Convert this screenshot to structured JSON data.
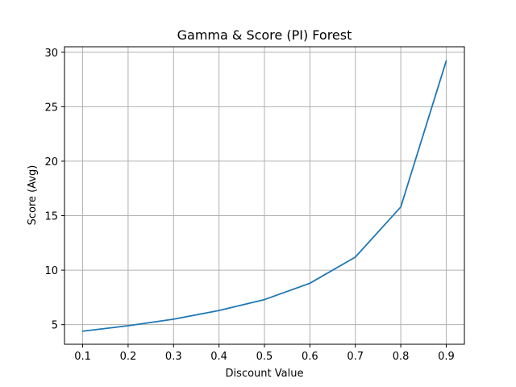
{
  "chart_data": {
    "type": "line",
    "title": "Gamma & Score (PI) Forest",
    "xlabel": "Discount Value",
    "ylabel": "Score (Avg)",
    "x": [
      0.1,
      0.2,
      0.3,
      0.4,
      0.5,
      0.6,
      0.7,
      0.8,
      0.9
    ],
    "series": [
      {
        "values": [
          4.4,
          4.9,
          5.5,
          6.3,
          7.3,
          8.8,
          11.2,
          15.8,
          29.2
        ]
      }
    ],
    "xlim": [
      0.06,
      0.94
    ],
    "ylim": [
      3.2,
      30.5
    ],
    "xticks": [
      0.1,
      0.2,
      0.3,
      0.4,
      0.5,
      0.6,
      0.7,
      0.8,
      0.9
    ],
    "xtick_labels": [
      "0.1",
      "0.2",
      "0.3",
      "0.4",
      "0.5",
      "0.6",
      "0.7",
      "0.8",
      "0.9"
    ],
    "yticks": [
      5,
      10,
      15,
      20,
      25,
      30
    ],
    "ytick_labels": [
      "5",
      "10",
      "15",
      "20",
      "25",
      "30"
    ],
    "grid": true,
    "colors": {
      "line": "#1f77b4",
      "grid": "#b0b0b0",
      "axes": "#000000"
    }
  }
}
